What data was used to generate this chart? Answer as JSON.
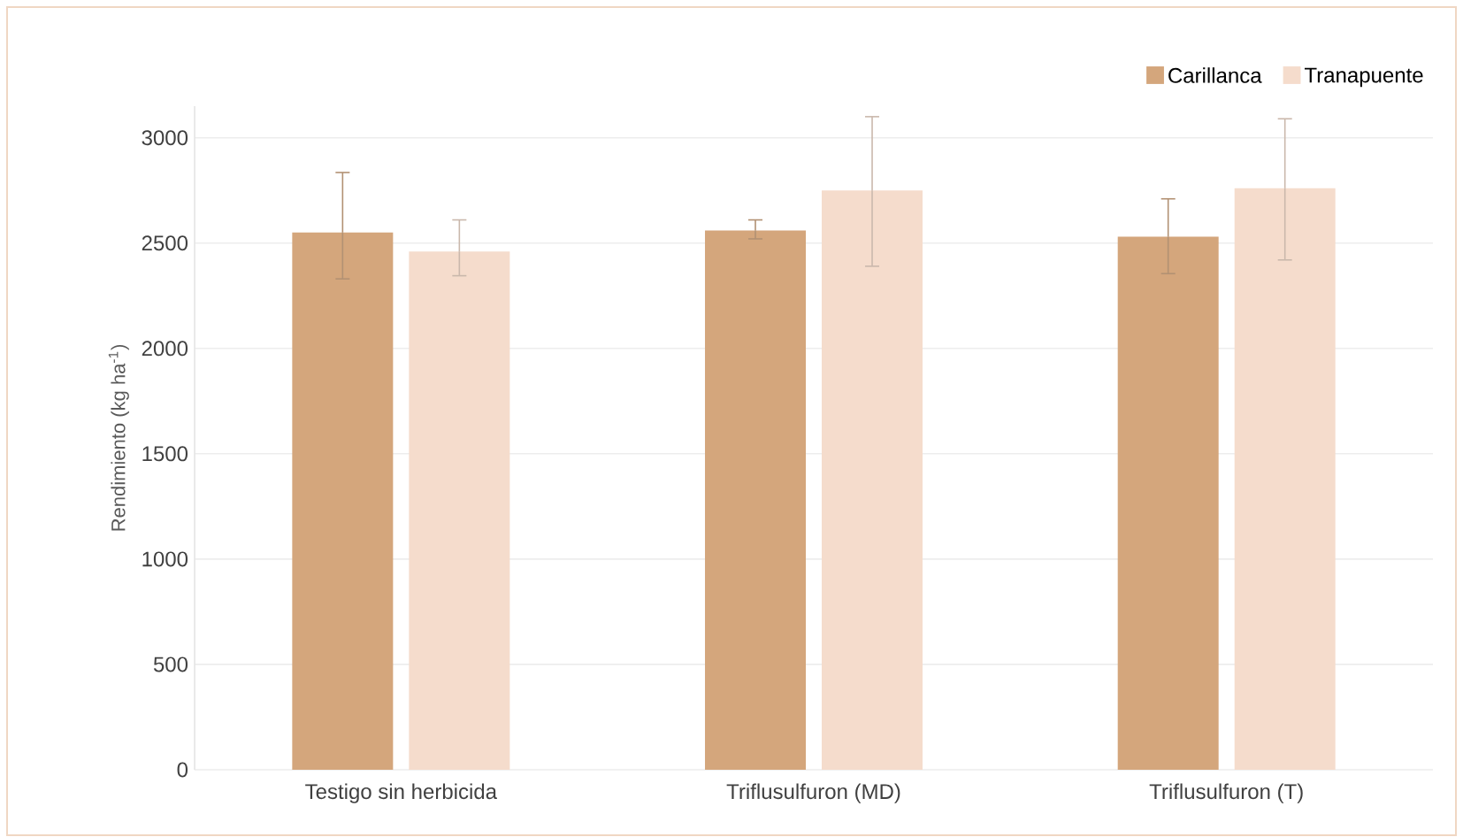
{
  "chart_data": {
    "type": "bar",
    "ylabel": "Rendimiento (kg ha$^{-1}$)",
    "categories": [
      "Testigo sin herbicida",
      "Triflusulfuron (MD)",
      "Triflusulfuron (T)"
    ],
    "series": [
      {
        "name": "Carillanca",
        "color": "#d4a67c",
        "values": [
          2550,
          2560,
          2530
        ],
        "errors": [
          [
            2330,
            2835
          ],
          [
            2520,
            2610
          ],
          [
            2355,
            2710
          ]
        ]
      },
      {
        "name": "Tranapuente",
        "color": "#f5dccc",
        "values": [
          2460,
          2750,
          2760
        ],
        "errors": [
          [
            2345,
            2610
          ],
          [
            2390,
            3100
          ],
          [
            2420,
            3090
          ]
        ]
      }
    ],
    "ylim": [
      0,
      3150
    ],
    "yticks": [
      0,
      500,
      1000,
      1500,
      2000,
      2500,
      3000
    ],
    "grid": "y",
    "legend": "top right"
  }
}
